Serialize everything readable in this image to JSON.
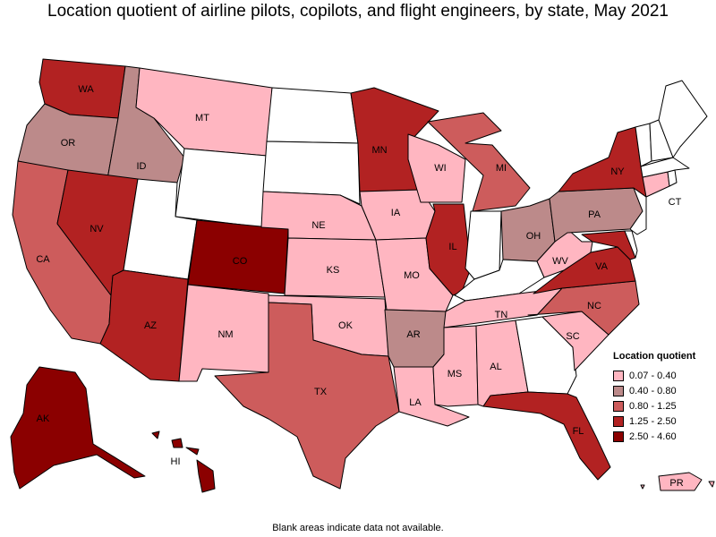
{
  "title": "Location quotient of airline pilots, copilots, and flight engineers, by state, May 2021",
  "legend": {
    "title": "Location quotient",
    "bins": [
      {
        "range": "0.07 - 0.40",
        "color": "#ffb6c1"
      },
      {
        "range": "0.40 - 0.80",
        "color": "#bc8a8a"
      },
      {
        "range": "0.80 - 1.25",
        "color": "#cd5c5c"
      },
      {
        "range": "1.25 - 2.50",
        "color": "#b22222"
      },
      {
        "range": "2.50 - 4.60",
        "color": "#8b0000"
      }
    ]
  },
  "no_data_color": "#ffffff",
  "footnote": "Blank areas indicate data not available.",
  "chart_data": {
    "type": "choropleth",
    "states": [
      {
        "abbr": "WA",
        "bin": 3
      },
      {
        "abbr": "OR",
        "bin": 1
      },
      {
        "abbr": "CA",
        "bin": 2
      },
      {
        "abbr": "ID",
        "bin": 1
      },
      {
        "abbr": "NV",
        "bin": 3
      },
      {
        "abbr": "MT",
        "bin": 0
      },
      {
        "abbr": "WY",
        "bin": null
      },
      {
        "abbr": "UT",
        "bin": null
      },
      {
        "abbr": "AZ",
        "bin": 3
      },
      {
        "abbr": "CO",
        "bin": 4
      },
      {
        "abbr": "NM",
        "bin": 0
      },
      {
        "abbr": "ND",
        "bin": null
      },
      {
        "abbr": "SD",
        "bin": null
      },
      {
        "abbr": "NE",
        "bin": 0
      },
      {
        "abbr": "KS",
        "bin": 0
      },
      {
        "abbr": "OK",
        "bin": 0
      },
      {
        "abbr": "TX",
        "bin": 2
      },
      {
        "abbr": "MN",
        "bin": 3
      },
      {
        "abbr": "IA",
        "bin": 0
      },
      {
        "abbr": "MO",
        "bin": 0
      },
      {
        "abbr": "AR",
        "bin": 1
      },
      {
        "abbr": "LA",
        "bin": 0
      },
      {
        "abbr": "WI",
        "bin": 0
      },
      {
        "abbr": "IL",
        "bin": 3
      },
      {
        "abbr": "IN",
        "bin": null
      },
      {
        "abbr": "MI",
        "bin": 2
      },
      {
        "abbr": "OH",
        "bin": 1
      },
      {
        "abbr": "KY",
        "bin": null
      },
      {
        "abbr": "TN",
        "bin": 0
      },
      {
        "abbr": "MS",
        "bin": 0
      },
      {
        "abbr": "AL",
        "bin": 0
      },
      {
        "abbr": "GA",
        "bin": null
      },
      {
        "abbr": "FL",
        "bin": 3
      },
      {
        "abbr": "SC",
        "bin": 0
      },
      {
        "abbr": "NC",
        "bin": 2
      },
      {
        "abbr": "VA",
        "bin": 3
      },
      {
        "abbr": "WV",
        "bin": 0
      },
      {
        "abbr": "PA",
        "bin": 1
      },
      {
        "abbr": "NY",
        "bin": 3
      },
      {
        "abbr": "NJ",
        "bin": null
      },
      {
        "abbr": "DE",
        "bin": null
      },
      {
        "abbr": "MD",
        "bin": 3
      },
      {
        "abbr": "CT",
        "bin": 0
      },
      {
        "abbr": "RI",
        "bin": null
      },
      {
        "abbr": "MA",
        "bin": null
      },
      {
        "abbr": "VT",
        "bin": null
      },
      {
        "abbr": "NH",
        "bin": null
      },
      {
        "abbr": "ME",
        "bin": null
      },
      {
        "abbr": "AK",
        "bin": 4
      },
      {
        "abbr": "HI",
        "bin": 4
      },
      {
        "abbr": "PR",
        "bin": 0
      }
    ]
  }
}
